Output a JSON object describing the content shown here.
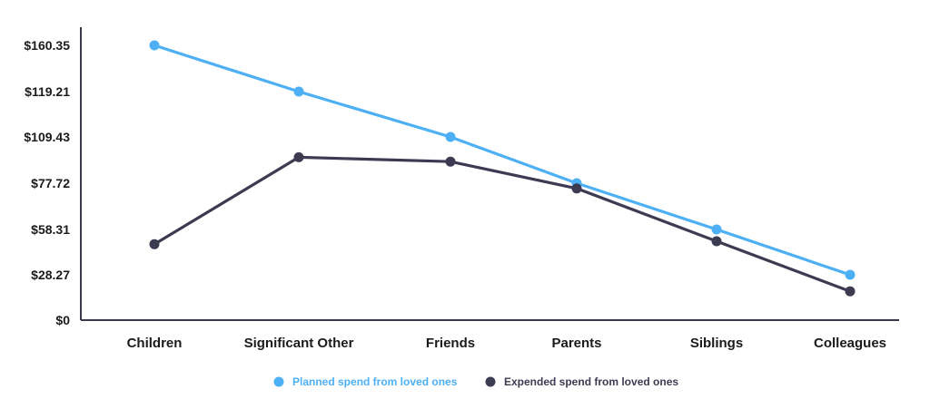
{
  "chart_data": {
    "type": "line",
    "categories": [
      "Children",
      "Significant Other",
      "Friends",
      "Parents",
      "Siblings",
      "Colleagues"
    ],
    "y_tick_labels": [
      "$0",
      "$28.27",
      "$58.31",
      "$77.72",
      "$109.43",
      "$119.21",
      "$160.35"
    ],
    "grid": false,
    "legend_position": "bottom-center",
    "series": [
      {
        "name": "Planned spend from loved ones",
        "color": "#4db0f5",
        "values": [
          160.35,
          119.21,
          109.43,
          77.72,
          58.31,
          28.27
        ]
      },
      {
        "name": "Expended spend from loved ones",
        "color": "#3d3b52",
        "values": [
          48.5,
          95.5,
          92.5,
          75.5,
          50.5,
          18.0
        ]
      }
    ]
  }
}
